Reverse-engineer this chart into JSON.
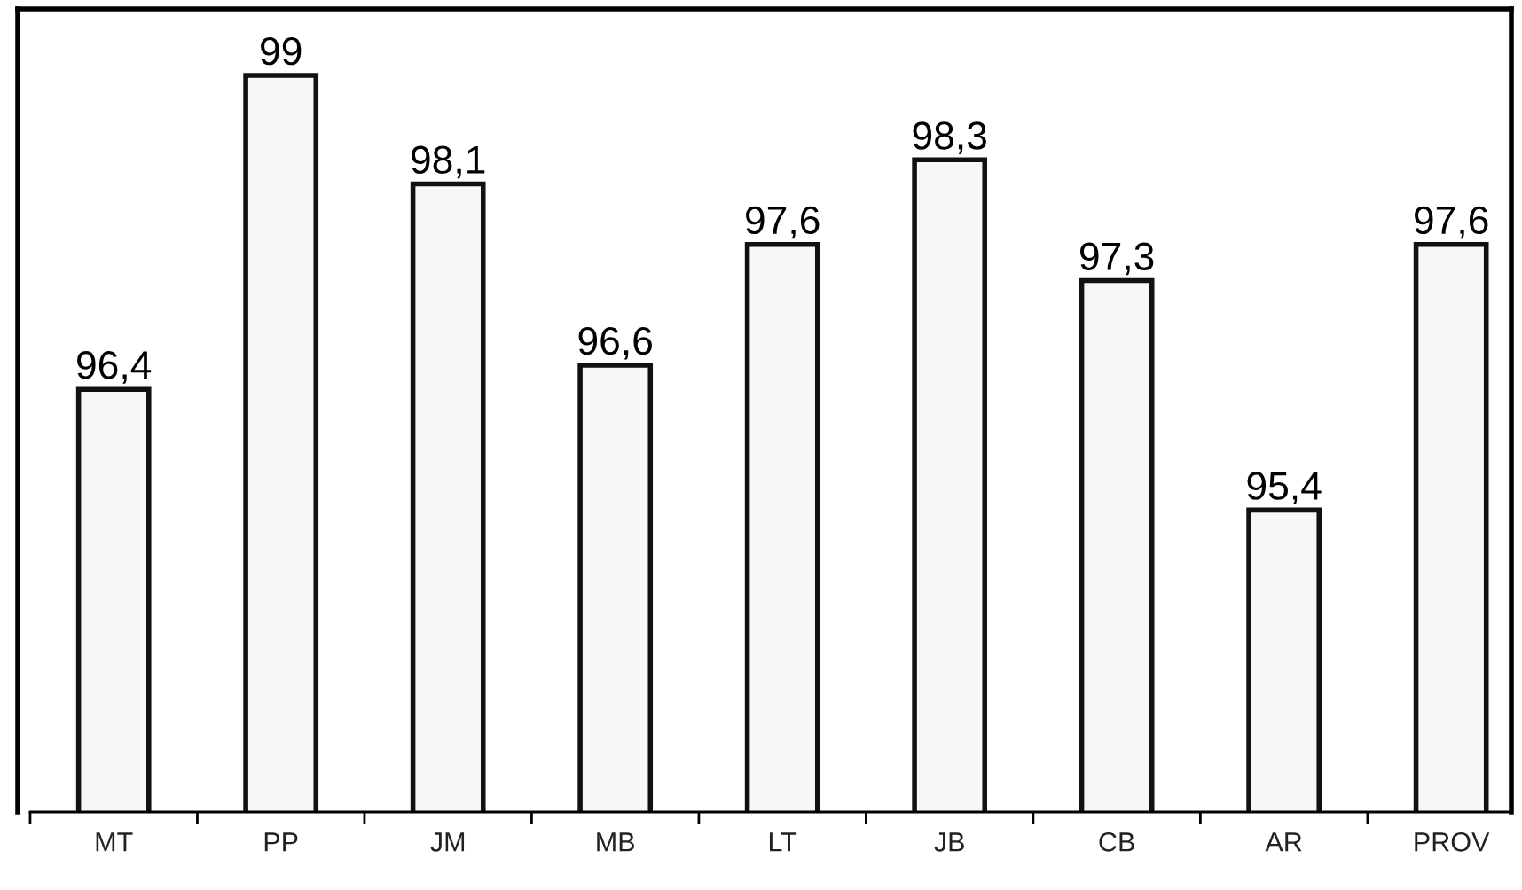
{
  "chart_data": {
    "type": "bar",
    "categories": [
      "MT",
      "PP",
      "JM",
      "MB",
      "LT",
      "JB",
      "CB",
      "AR",
      "PROV"
    ],
    "values": [
      96.4,
      99,
      98.1,
      96.6,
      97.6,
      98.3,
      97.3,
      95.4,
      97.6
    ],
    "value_labels": [
      "96,4",
      "99",
      "98,1",
      "96,6",
      "97,6",
      "98,3",
      "97,3",
      "95,4",
      "97,6"
    ],
    "color": "#f7f7f7",
    "ylim": [
      92.9,
      99.55
    ],
    "grid": false,
    "legend": false
  }
}
